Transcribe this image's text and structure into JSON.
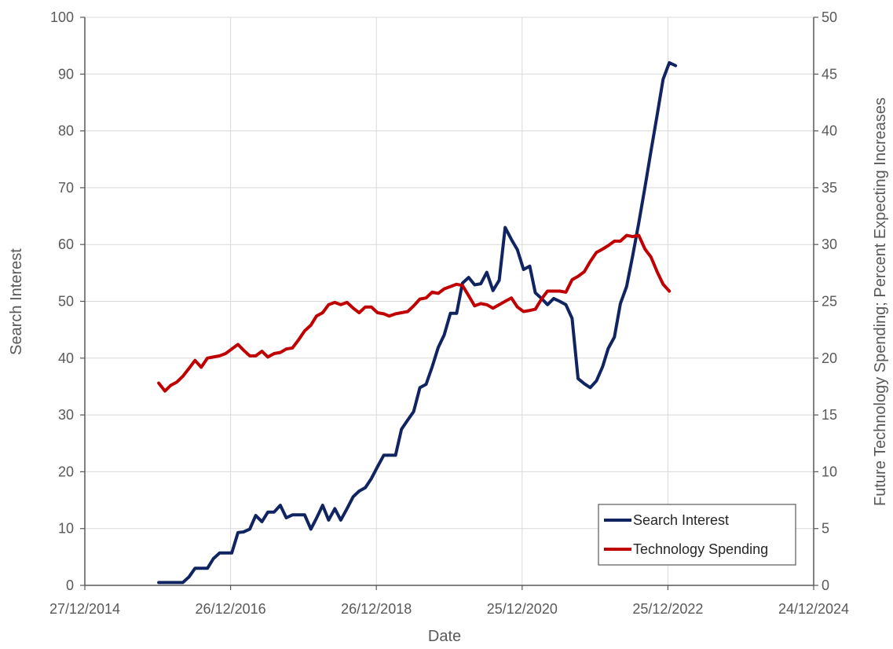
{
  "chart_data": {
    "type": "line",
    "xlabel": "Date",
    "ylabel_left": "Search Interest",
    "ylabel_right": "Future Technology Spending; Percent Expecting Increases",
    "x_ticks": [
      "27/12/2014",
      "26/12/2016",
      "26/12/2018",
      "25/12/2020",
      "25/12/2022",
      "24/12/2024"
    ],
    "x_range": [
      "2014-12-27",
      "2024-12-24"
    ],
    "ylim_left": [
      0,
      100
    ],
    "ylim_right": [
      0,
      50
    ],
    "y_ticks_left": [
      0,
      10,
      20,
      30,
      40,
      50,
      60,
      70,
      80,
      90,
      100
    ],
    "y_ticks_right": [
      0,
      5,
      10,
      15,
      20,
      25,
      30,
      35,
      40,
      45,
      50
    ],
    "grid": true,
    "legend_position": "bottom-right",
    "colors": {
      "search": "#0f2460",
      "spending": "#c00000"
    },
    "series": [
      {
        "name": "Search Interest",
        "axis": "left",
        "color": "#0f2460",
        "points": [
          [
            "2016-01-01",
            0.5
          ],
          [
            "2016-03-01",
            0.5
          ],
          [
            "2016-05-01",
            0.5
          ],
          [
            "2016-06-01",
            1.5
          ],
          [
            "2016-07-01",
            3
          ],
          [
            "2016-08-01",
            3
          ],
          [
            "2016-09-01",
            3
          ],
          [
            "2016-10-01",
            4.7
          ],
          [
            "2016-11-01",
            5.7
          ],
          [
            "2016-12-01",
            5.7
          ],
          [
            "2017-01-01",
            5.7
          ],
          [
            "2017-02-01",
            9.3
          ],
          [
            "2017-03-01",
            9.4
          ],
          [
            "2017-04-01",
            9.9
          ],
          [
            "2017-05-01",
            12.3
          ],
          [
            "2017-06-01",
            11.2
          ],
          [
            "2017-07-01",
            12.9
          ],
          [
            "2017-08-01",
            12.9
          ],
          [
            "2017-09-01",
            14.1
          ],
          [
            "2017-10-01",
            11.9
          ],
          [
            "2017-11-01",
            12.4
          ],
          [
            "2017-12-01",
            12.4
          ],
          [
            "2018-01-01",
            12.4
          ],
          [
            "2018-02-01",
            9.9
          ],
          [
            "2018-03-01",
            11.8
          ],
          [
            "2018-04-01",
            14.1
          ],
          [
            "2018-05-01",
            11.5
          ],
          [
            "2018-06-01",
            13.5
          ],
          [
            "2018-07-01",
            11.5
          ],
          [
            "2018-08-01",
            13.5
          ],
          [
            "2018-09-01",
            15.6
          ],
          [
            "2018-10-01",
            16.6
          ],
          [
            "2018-11-01",
            17.2
          ],
          [
            "2018-12-01",
            18.8
          ],
          [
            "2019-01-01",
            20.9
          ],
          [
            "2019-02-01",
            22.9
          ],
          [
            "2019-03-01",
            22.9
          ],
          [
            "2019-04-01",
            22.9
          ],
          [
            "2019-05-01",
            27.5
          ],
          [
            "2019-06-01",
            29.1
          ],
          [
            "2019-07-01",
            30.6
          ],
          [
            "2019-08-01",
            34.8
          ],
          [
            "2019-09-01",
            35.4
          ],
          [
            "2019-10-01",
            38.4
          ],
          [
            "2019-11-01",
            41.9
          ],
          [
            "2019-12-01",
            44.1
          ],
          [
            "2020-01-01",
            47.9
          ],
          [
            "2020-02-01",
            47.9
          ],
          [
            "2020-03-01",
            53.2
          ],
          [
            "2020-04-01",
            54.2
          ],
          [
            "2020-05-01",
            52.9
          ],
          [
            "2020-06-01",
            53.1
          ],
          [
            "2020-07-01",
            55.1
          ],
          [
            "2020-08-01",
            51.9
          ],
          [
            "2020-09-01",
            53.7
          ],
          [
            "2020-10-01",
            63.0
          ],
          [
            "2020-11-01",
            60.9
          ],
          [
            "2020-12-01",
            59.1
          ],
          [
            "2021-01-01",
            55.6
          ],
          [
            "2021-02-01",
            56.2
          ],
          [
            "2021-03-01",
            51.5
          ],
          [
            "2021-04-01",
            50.5
          ],
          [
            "2021-05-01",
            49.4
          ],
          [
            "2021-06-01",
            50.5
          ],
          [
            "2021-07-01",
            50.0
          ],
          [
            "2021-08-01",
            49.4
          ],
          [
            "2021-09-01",
            47.0
          ],
          [
            "2021-10-01",
            36.4
          ],
          [
            "2021-11-01",
            35.5
          ],
          [
            "2021-12-01",
            34.8
          ],
          [
            "2022-01-01",
            36.0
          ],
          [
            "2022-02-01",
            38.5
          ],
          [
            "2022-03-01",
            41.7
          ],
          [
            "2022-04-01",
            43.7
          ],
          [
            "2022-05-01",
            49.6
          ],
          [
            "2022-06-01",
            52.6
          ],
          [
            "2022-07-01",
            57.9
          ],
          [
            "2022-08-01",
            63.8
          ],
          [
            "2022-09-01",
            70.1
          ],
          [
            "2022-10-01",
            76.4
          ],
          [
            "2022-11-01",
            82.8
          ],
          [
            "2022-12-01",
            89.1
          ],
          [
            "2023-01-01",
            92.0
          ],
          [
            "2023-02-01",
            91.5
          ]
        ]
      },
      {
        "name": "Technology Spending",
        "axis": "right",
        "color": "#c00000",
        "points": [
          [
            "2016-01-01",
            17.8
          ],
          [
            "2016-02-01",
            17.1
          ],
          [
            "2016-03-01",
            17.6
          ],
          [
            "2016-04-01",
            17.9
          ],
          [
            "2016-05-01",
            18.4
          ],
          [
            "2016-06-01",
            19.1
          ],
          [
            "2016-07-01",
            19.8
          ],
          [
            "2016-08-01",
            19.2
          ],
          [
            "2016-09-01",
            20.0
          ],
          [
            "2016-10-01",
            20.1
          ],
          [
            "2016-11-01",
            20.2
          ],
          [
            "2016-12-01",
            20.4
          ],
          [
            "2017-01-01",
            20.8
          ],
          [
            "2017-02-01",
            21.2
          ],
          [
            "2017-03-01",
            20.7
          ],
          [
            "2017-04-01",
            20.2
          ],
          [
            "2017-05-01",
            20.2
          ],
          [
            "2017-06-01",
            20.6
          ],
          [
            "2017-07-01",
            20.1
          ],
          [
            "2017-08-01",
            20.4
          ],
          [
            "2017-09-01",
            20.5
          ],
          [
            "2017-10-01",
            20.8
          ],
          [
            "2017-11-01",
            20.9
          ],
          [
            "2017-12-01",
            21.6
          ],
          [
            "2018-01-01",
            22.4
          ],
          [
            "2018-02-01",
            22.9
          ],
          [
            "2018-03-01",
            23.7
          ],
          [
            "2018-04-01",
            24.0
          ],
          [
            "2018-05-01",
            24.7
          ],
          [
            "2018-06-01",
            24.9
          ],
          [
            "2018-07-01",
            24.7
          ],
          [
            "2018-08-01",
            24.9
          ],
          [
            "2018-09-01",
            24.4
          ],
          [
            "2018-10-01",
            24.0
          ],
          [
            "2018-11-01",
            24.5
          ],
          [
            "2018-12-01",
            24.5
          ],
          [
            "2019-01-01",
            24.0
          ],
          [
            "2019-02-01",
            23.9
          ],
          [
            "2019-03-01",
            23.7
          ],
          [
            "2019-04-01",
            23.9
          ],
          [
            "2019-05-01",
            24.0
          ],
          [
            "2019-06-01",
            24.1
          ],
          [
            "2019-07-01",
            24.6
          ],
          [
            "2019-08-01",
            25.2
          ],
          [
            "2019-09-01",
            25.3
          ],
          [
            "2019-10-01",
            25.8
          ],
          [
            "2019-11-01",
            25.7
          ],
          [
            "2019-12-01",
            26.1
          ],
          [
            "2020-01-01",
            26.3
          ],
          [
            "2020-02-01",
            26.5
          ],
          [
            "2020-03-01",
            26.4
          ],
          [
            "2020-04-01",
            25.5
          ],
          [
            "2020-05-01",
            24.6
          ],
          [
            "2020-06-01",
            24.8
          ],
          [
            "2020-07-01",
            24.7
          ],
          [
            "2020-08-01",
            24.4
          ],
          [
            "2020-09-01",
            24.7
          ],
          [
            "2020-10-01",
            25.0
          ],
          [
            "2020-11-01",
            25.3
          ],
          [
            "2020-12-01",
            24.5
          ],
          [
            "2021-01-01",
            24.1
          ],
          [
            "2021-02-01",
            24.2
          ],
          [
            "2021-03-01",
            24.3
          ],
          [
            "2021-04-01",
            25.2
          ],
          [
            "2021-05-01",
            25.9
          ],
          [
            "2021-06-01",
            25.9
          ],
          [
            "2021-07-01",
            25.9
          ],
          [
            "2021-08-01",
            25.8
          ],
          [
            "2021-09-01",
            26.9
          ],
          [
            "2021-10-01",
            27.2
          ],
          [
            "2021-11-01",
            27.6
          ],
          [
            "2021-12-01",
            28.5
          ],
          [
            "2022-01-01",
            29.3
          ],
          [
            "2022-02-01",
            29.6
          ],
          [
            "2022-03-01",
            29.9
          ],
          [
            "2022-04-01",
            30.3
          ],
          [
            "2022-05-01",
            30.3
          ],
          [
            "2022-06-01",
            30.8
          ],
          [
            "2022-07-01",
            30.7
          ],
          [
            "2022-08-01",
            30.8
          ],
          [
            "2022-09-01",
            29.6
          ],
          [
            "2022-10-01",
            28.9
          ],
          [
            "2022-11-01",
            27.6
          ],
          [
            "2022-12-01",
            26.5
          ],
          [
            "2023-01-01",
            25.9
          ]
        ]
      }
    ]
  }
}
